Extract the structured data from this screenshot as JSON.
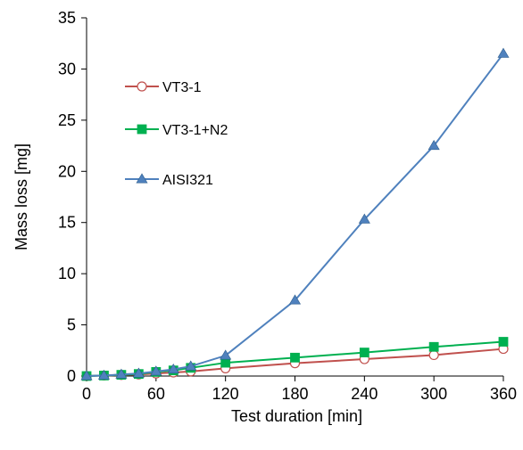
{
  "chart_data": {
    "type": "line",
    "title": "",
    "xlabel": "Test duration [min]",
    "ylabel": "Mass loss [mg]",
    "xlim": [
      0,
      360
    ],
    "ylim": [
      0,
      35
    ],
    "x_ticks": [
      0,
      60,
      120,
      180,
      240,
      300,
      360
    ],
    "y_ticks": [
      0,
      5,
      10,
      15,
      20,
      25,
      30,
      35
    ],
    "grid": false,
    "legend_position": "left",
    "series": [
      {
        "name": "VT3-1",
        "marker": "open-circle",
        "color": "#C0504D",
        "x": [
          0,
          15,
          30,
          45,
          60,
          75,
          90,
          120,
          180,
          240,
          300,
          360
        ],
        "y": [
          0,
          0.05,
          0.1,
          0.15,
          0.25,
          0.35,
          0.45,
          0.75,
          1.25,
          1.65,
          2.05,
          2.65
        ]
      },
      {
        "name": "VT3-1+N2",
        "marker": "filled-square",
        "color": "#00B050",
        "x": [
          0,
          15,
          30,
          45,
          60,
          75,
          90,
          120,
          180,
          240,
          300,
          360
        ],
        "y": [
          0,
          0.05,
          0.12,
          0.2,
          0.4,
          0.55,
          0.8,
          1.3,
          1.8,
          2.3,
          2.85,
          3.35
        ]
      },
      {
        "name": "AISI321",
        "marker": "filled-triangle",
        "color": "#4F81BD",
        "x": [
          0,
          15,
          30,
          45,
          60,
          75,
          90,
          120,
          180,
          240,
          300,
          360
        ],
        "y": [
          0,
          0.05,
          0.15,
          0.25,
          0.45,
          0.65,
          0.95,
          2.0,
          7.4,
          15.3,
          22.5,
          31.5
        ]
      }
    ]
  }
}
